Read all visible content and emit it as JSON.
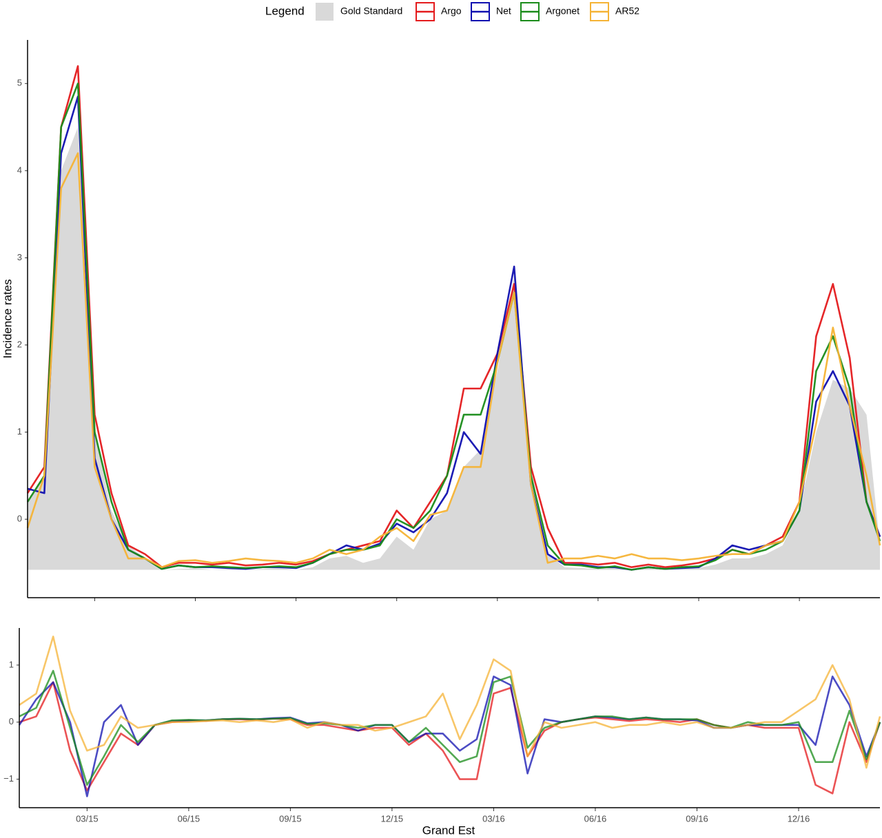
{
  "chart_data": [
    {
      "type": "line",
      "ylabel": "Incidence rates",
      "legend_title": "Legend",
      "legend": "top",
      "xlim": [
        1,
        26.4
      ],
      "ylim": [
        -0.9,
        5.5
      ],
      "yticks": [
        0,
        1,
        2,
        3,
        4,
        5
      ],
      "x": [
        1,
        1.5,
        2,
        2.5,
        3,
        3.5,
        4,
        4.5,
        5,
        5.5,
        6,
        6.5,
        7,
        7.5,
        8,
        8.5,
        9,
        9.5,
        10,
        10.5,
        11,
        11.5,
        12,
        12.5,
        13,
        13.5,
        14,
        14.5,
        15,
        15.5,
        16,
        16.5,
        17,
        17.5,
        18,
        18.5,
        19,
        19.5,
        20,
        20.5,
        21,
        21.5,
        22,
        22.5,
        23,
        23.5,
        24,
        24.5,
        25,
        25.5,
        26,
        26.4
      ],
      "series": [
        {
          "name": "Gold Standard",
          "style": "area",
          "color": "#d9d9d9",
          "values": [
            0.2,
            0.5,
            4.0,
            4.5,
            1.0,
            0.1,
            -0.3,
            -0.45,
            -0.58,
            -0.57,
            -0.56,
            -0.58,
            -0.57,
            -0.58,
            -0.57,
            -0.56,
            -0.58,
            -0.55,
            -0.45,
            -0.42,
            -0.5,
            -0.45,
            -0.2,
            -0.35,
            0.0,
            0.1,
            0.6,
            0.8,
            1.7,
            2.8,
            0.6,
            -0.4,
            -0.55,
            -0.56,
            -0.57,
            -0.55,
            -0.58,
            -0.56,
            -0.58,
            -0.57,
            -0.56,
            -0.52,
            -0.45,
            -0.45,
            -0.4,
            -0.3,
            0.1,
            1.0,
            1.6,
            1.5,
            1.2,
            -0.3
          ]
        },
        {
          "name": "Argo",
          "style": "line",
          "color": "#e41a1c",
          "values": [
            0.3,
            0.6,
            4.5,
            5.2,
            1.2,
            0.3,
            -0.3,
            -0.4,
            -0.55,
            -0.5,
            -0.5,
            -0.52,
            -0.5,
            -0.53,
            -0.52,
            -0.5,
            -0.52,
            -0.48,
            -0.4,
            -0.35,
            -0.3,
            -0.25,
            0.1,
            -0.1,
            0.2,
            0.5,
            1.5,
            1.5,
            1.9,
            2.7,
            0.6,
            -0.1,
            -0.5,
            -0.5,
            -0.52,
            -0.5,
            -0.55,
            -0.52,
            -0.55,
            -0.53,
            -0.5,
            -0.45,
            -0.35,
            -0.4,
            -0.3,
            -0.2,
            0.2,
            2.1,
            2.7,
            1.85,
            0.2,
            -0.2
          ]
        },
        {
          "name": "Net",
          "style": "line",
          "color": "#1010b0",
          "values": [
            0.35,
            0.3,
            4.2,
            4.85,
            0.7,
            0.0,
            -0.35,
            -0.45,
            -0.57,
            -0.53,
            -0.55,
            -0.55,
            -0.56,
            -0.57,
            -0.55,
            -0.55,
            -0.56,
            -0.5,
            -0.4,
            -0.3,
            -0.35,
            -0.28,
            -0.05,
            -0.15,
            0.0,
            0.3,
            1.0,
            0.75,
            1.9,
            2.9,
            0.4,
            -0.4,
            -0.52,
            -0.52,
            -0.55,
            -0.55,
            -0.58,
            -0.55,
            -0.57,
            -0.56,
            -0.55,
            -0.45,
            -0.3,
            -0.35,
            -0.3,
            -0.25,
            0.1,
            1.35,
            1.7,
            1.3,
            0.2,
            -0.2
          ]
        },
        {
          "name": "Argonet",
          "style": "line",
          "color": "#1a8c1a",
          "values": [
            0.2,
            0.5,
            4.5,
            5.0,
            1.0,
            0.2,
            -0.35,
            -0.45,
            -0.57,
            -0.53,
            -0.55,
            -0.54,
            -0.55,
            -0.56,
            -0.55,
            -0.54,
            -0.55,
            -0.5,
            -0.4,
            -0.35,
            -0.35,
            -0.3,
            0.0,
            -0.1,
            0.1,
            0.5,
            1.2,
            1.2,
            1.8,
            2.6,
            0.5,
            -0.3,
            -0.52,
            -0.53,
            -0.56,
            -0.54,
            -0.58,
            -0.55,
            -0.57,
            -0.55,
            -0.54,
            -0.47,
            -0.35,
            -0.4,
            -0.35,
            -0.25,
            0.1,
            1.7,
            2.1,
            1.5,
            0.2,
            -0.25
          ]
        },
        {
          "name": "AR52",
          "style": "line",
          "color": "#f5b335",
          "values": [
            -0.1,
            0.5,
            3.8,
            4.2,
            0.6,
            0.0,
            -0.45,
            -0.45,
            -0.55,
            -0.48,
            -0.47,
            -0.5,
            -0.48,
            -0.45,
            -0.47,
            -0.48,
            -0.5,
            -0.45,
            -0.35,
            -0.4,
            -0.35,
            -0.2,
            -0.1,
            -0.25,
            0.05,
            0.1,
            0.6,
            0.6,
            1.8,
            2.6,
            0.4,
            -0.5,
            -0.45,
            -0.45,
            -0.42,
            -0.45,
            -0.4,
            -0.45,
            -0.45,
            -0.47,
            -0.45,
            -0.42,
            -0.4,
            -0.4,
            -0.3,
            -0.25,
            0.2,
            1.1,
            2.2,
            1.3,
            0.5,
            -0.3
          ]
        }
      ]
    },
    {
      "type": "line",
      "xlabel": "Grand Est",
      "ylim": [
        -1.5,
        1.65
      ],
      "yticks": [
        {
          "value": -1,
          "label": "−1"
        },
        0,
        1
      ],
      "xticks": [
        {
          "value": 3,
          "label": "03/15"
        },
        {
          "value": 6,
          "label": "06/15"
        },
        {
          "value": 9,
          "label": "09/15"
        },
        {
          "value": 12,
          "label": "12/15"
        },
        {
          "value": 15,
          "label": "03/16"
        },
        {
          "value": 18,
          "label": "06/16"
        },
        {
          "value": 21,
          "label": "09/16"
        },
        {
          "value": 24,
          "label": "12/16"
        }
      ],
      "series": [
        {
          "color": "#e41a1c",
          "values": [
            0.0,
            0.1,
            0.7,
            -0.5,
            -1.2,
            -0.7,
            -0.2,
            -0.4,
            -0.05,
            0.0,
            0.03,
            0.02,
            0.05,
            0.05,
            0.04,
            0.06,
            0.05,
            -0.05,
            -0.05,
            -0.1,
            -0.15,
            -0.1,
            -0.1,
            -0.4,
            -0.2,
            -0.5,
            -1.0,
            -1.0,
            0.5,
            0.6,
            -0.6,
            -0.15,
            0.0,
            0.05,
            0.08,
            0.05,
            0.02,
            0.05,
            0.03,
            0.0,
            0.05,
            -0.05,
            -0.1,
            -0.05,
            -0.1,
            -0.1,
            -0.1,
            -1.1,
            -1.25,
            0.0,
            -0.7,
            0.0
          ]
        },
        {
          "color": "#1010b0",
          "values": [
            -0.05,
            0.4,
            0.7,
            0.0,
            -1.3,
            0.0,
            0.3,
            -0.4,
            -0.05,
            0.02,
            0.03,
            0.03,
            0.05,
            0.06,
            0.05,
            0.07,
            0.08,
            -0.02,
            0.0,
            -0.05,
            -0.15,
            -0.05,
            -0.05,
            -0.35,
            -0.2,
            -0.2,
            -0.5,
            -0.3,
            0.8,
            0.65,
            -0.9,
            0.05,
            0.0,
            0.05,
            0.1,
            0.08,
            0.05,
            0.08,
            0.05,
            0.05,
            0.03,
            -0.1,
            -0.1,
            -0.05,
            -0.05,
            -0.05,
            -0.05,
            -0.4,
            0.8,
            0.3,
            -0.6,
            0.0
          ]
        },
        {
          "color": "#1a8c1a",
          "values": [
            0.1,
            0.25,
            0.9,
            -0.1,
            -1.1,
            -0.6,
            -0.05,
            -0.35,
            -0.05,
            0.03,
            0.04,
            0.03,
            0.05,
            0.06,
            0.05,
            0.06,
            0.07,
            -0.03,
            -0.02,
            -0.05,
            -0.1,
            -0.05,
            -0.05,
            -0.35,
            -0.1,
            -0.4,
            -0.7,
            -0.6,
            0.7,
            0.8,
            -0.45,
            -0.1,
            0.0,
            0.05,
            0.1,
            0.1,
            0.05,
            0.08,
            0.05,
            0.05,
            0.05,
            -0.05,
            -0.1,
            0.0,
            -0.05,
            -0.05,
            0.0,
            -0.7,
            -0.7,
            0.2,
            -0.65,
            0.0
          ]
        },
        {
          "color": "#f5b335",
          "values": [
            0.3,
            0.5,
            1.5,
            0.2,
            -0.5,
            -0.4,
            0.1,
            -0.1,
            -0.05,
            0.0,
            0.0,
            0.02,
            0.03,
            0.0,
            0.03,
            0.0,
            0.05,
            -0.1,
            0.0,
            -0.05,
            -0.05,
            -0.15,
            -0.1,
            0.0,
            0.1,
            0.5,
            -0.3,
            0.3,
            1.1,
            0.9,
            -0.6,
            0.0,
            -0.1,
            -0.05,
            0.0,
            -0.1,
            -0.05,
            -0.05,
            0.0,
            -0.05,
            0.0,
            -0.1,
            -0.1,
            -0.05,
            0.0,
            0.0,
            0.2,
            0.4,
            1.0,
            0.4,
            -0.8,
            0.1
          ]
        }
      ]
    }
  ]
}
